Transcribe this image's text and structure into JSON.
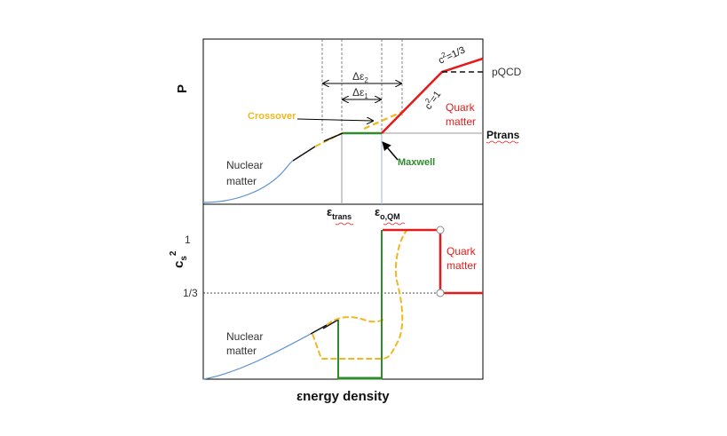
{
  "top_panel": {
    "y_axis_label": "P",
    "cs2_one_third_label": "c",
    "cs2_one_third_sup": "2",
    "cs2_one_third_value": "=1/3",
    "cs2_one_label": "c",
    "cs2_one_sup": "2",
    "cs2_one_value": "=1",
    "delta_eps2": "Δε",
    "delta_eps2_sub": "2",
    "delta_eps1": "Δε",
    "delta_eps1_sub": "1",
    "crossover_label": "Crossover",
    "pqcd_label": "pQCD",
    "quark_matter_line1": "Quark",
    "quark_matter_line2": "matter",
    "ptrans_label": "Ptrans",
    "maxwell_label": "Maxwell",
    "nuclear_matter_line1": "Nuclear",
    "nuclear_matter_line2": "matter",
    "eps_trans_symbol": "ε",
    "eps_trans_sub": "trans",
    "eps_qm_symbol": "ε",
    "eps_qm_sub": "o,QM"
  },
  "bottom_panel": {
    "y_axis_label": "c",
    "y_axis_sub": "s",
    "y_axis_sup": "2",
    "tick_one": "1",
    "tick_one_third": "1/3",
    "quark_matter_line1": "Quark",
    "quark_matter_line2": "matter",
    "nuclear_matter_line1": "Nuclear",
    "nuclear_matter_line2": "matter",
    "x_axis_label": "εnergy  density"
  },
  "colors": {
    "nuclear": "#5b8fd1",
    "crossover": "#f2b71f",
    "maxwell": "#2e8b2e",
    "quark": "#e31b1b",
    "black": "#111111",
    "grid": "#888888"
  }
}
